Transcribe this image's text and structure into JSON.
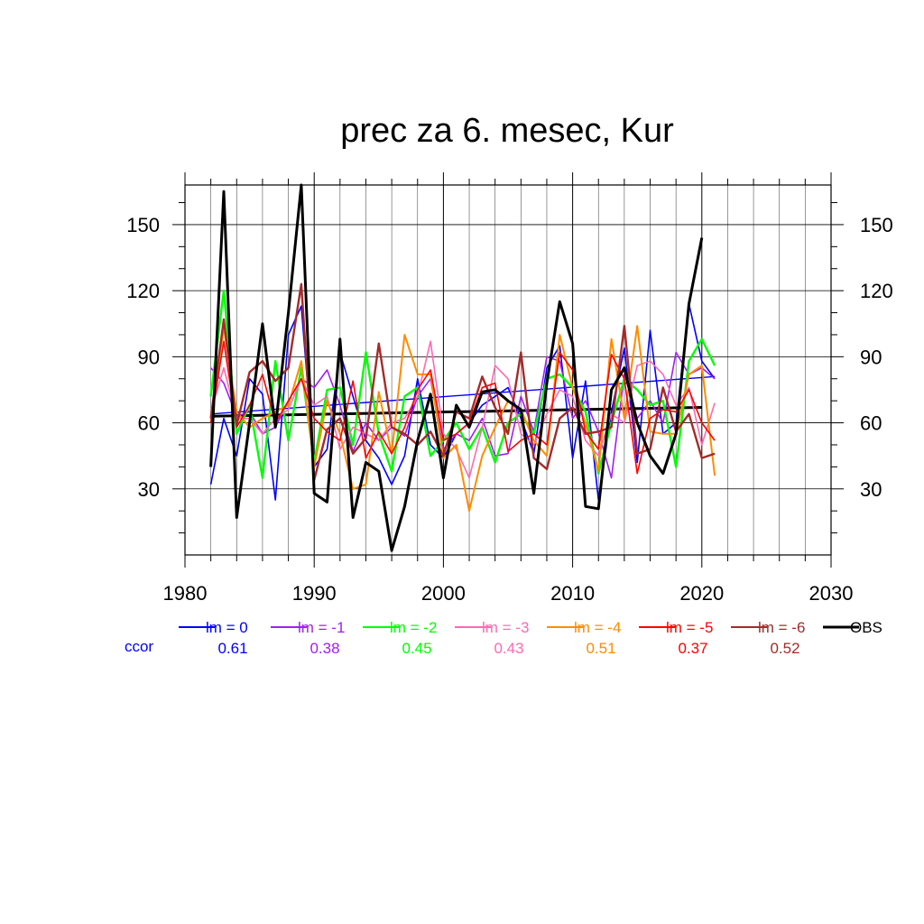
{
  "chart_data": {
    "type": "line",
    "title": "prec za 6. mesec, Kur",
    "xlim": [
      1980,
      2030
    ],
    "ylim": [
      0,
      168
    ],
    "x_ticks": [
      1980,
      1990,
      2000,
      2010,
      2020,
      2030
    ],
    "y_ticks": [
      30,
      60,
      90,
      120,
      150
    ],
    "grid": "on",
    "legend_position": "below",
    "years": [
      1982,
      1983,
      1984,
      1985,
      1986,
      1987,
      1988,
      1989,
      1990,
      1991,
      1992,
      1993,
      1994,
      1995,
      1996,
      1997,
      1998,
      1999,
      2000,
      2001,
      2002,
      2003,
      2004,
      2005,
      2006,
      2007,
      2008,
      2009,
      2010,
      2011,
      2012,
      2013,
      2014,
      2015,
      2016,
      2017,
      2018,
      2019,
      2020,
      2021
    ],
    "ccor_label": "ccor",
    "series": [
      {
        "name": "lm = 0",
        "color": "#0000ff",
        "ccor": "0.61",
        "width": 1.6,
        "values": [
          32,
          62,
          45,
          80,
          73,
          25,
          100,
          113,
          40,
          48,
          92,
          72,
          52,
          44,
          32,
          45,
          80,
          50,
          44,
          55,
          60,
          68,
          72,
          76,
          62,
          46,
          85,
          95,
          44,
          79,
          25,
          65,
          94,
          42,
          102,
          55,
          60,
          114,
          88,
          80
        ],
        "trend": [
          64,
          81
        ]
      },
      {
        "name": "lm = -1",
        "color": "#a020f0",
        "ccor": "0.38",
        "width": 1.6,
        "values": [
          85,
          78,
          63,
          65,
          55,
          58,
          70,
          80,
          76,
          84,
          68,
          47,
          60,
          52,
          58,
          54,
          72,
          80,
          48,
          55,
          52,
          62,
          45,
          46,
          72,
          56,
          90,
          88,
          62,
          70,
          56,
          35,
          82,
          62,
          70,
          60,
          92,
          82,
          85,
          80
        ],
        "trend": null
      },
      {
        "name": "lm = -2",
        "color": "#00ff00",
        "ccor": "0.45",
        "width": 2.4,
        "values": [
          72,
          120,
          55,
          68,
          35,
          88,
          52,
          85,
          42,
          75,
          76,
          50,
          92,
          55,
          38,
          72,
          76,
          45,
          52,
          60,
          48,
          58,
          42,
          60,
          64,
          55,
          80,
          82,
          76,
          65,
          37,
          60,
          80,
          75,
          68,
          70,
          40,
          88,
          98,
          86
        ],
        "trend": null
      },
      {
        "name": "lm = -3",
        "color": "#ff69b4",
        "ccor": "0.43",
        "width": 1.6,
        "values": [
          65,
          85,
          62,
          62,
          55,
          62,
          66,
          80,
          68,
          72,
          48,
          58,
          55,
          52,
          60,
          62,
          72,
          97,
          55,
          48,
          35,
          58,
          86,
          80,
          55,
          50,
          64,
          75,
          72,
          52,
          45,
          64,
          60,
          86,
          88,
          82,
          68,
          76,
          50,
          69
        ],
        "trend": null
      },
      {
        "name": "lm = -4",
        "color": "#ff8c00",
        "ccor": "0.51",
        "width": 2.0,
        "values": [
          60,
          103,
          65,
          58,
          62,
          65,
          68,
          88,
          40,
          70,
          55,
          30,
          32,
          74,
          46,
          100,
          82,
          82,
          44,
          50,
          20,
          45,
          58,
          70,
          66,
          52,
          45,
          100,
          76,
          60,
          38,
          98,
          62,
          104,
          56,
          55,
          55,
          82,
          86,
          36
        ],
        "trend": null
      },
      {
        "name": "lm = -5",
        "color": "#ff0000",
        "ccor": "0.37",
        "width": 1.6,
        "values": [
          60,
          97,
          58,
          68,
          82,
          60,
          70,
          80,
          62,
          56,
          52,
          79,
          44,
          56,
          46,
          58,
          75,
          84,
          52,
          55,
          60,
          76,
          78,
          47,
          52,
          55,
          50,
          92,
          84,
          56,
          48,
          91,
          80,
          37,
          62,
          66,
          65,
          75,
          60,
          52
        ],
        "trend": null
      },
      {
        "name": "lm = -6",
        "color": "#a52a2a",
        "ccor": "0.52",
        "width": 2.4,
        "values": [
          62,
          107,
          59,
          83,
          88,
          79,
          85,
          123,
          34,
          57,
          62,
          46,
          53,
          96,
          58,
          55,
          50,
          56,
          45,
          65,
          62,
          81,
          67,
          55,
          92,
          44,
          39,
          62,
          67,
          55,
          56,
          58,
          104,
          46,
          48,
          76,
          56,
          64,
          44,
          46
        ],
        "trend": null
      },
      {
        "name": "OBS",
        "color": "#000000",
        "ccor": "",
        "width": 3.0,
        "values": [
          40,
          165,
          17,
          60,
          105,
          58,
          110,
          168,
          28,
          24,
          98,
          17,
          42,
          38,
          2,
          22,
          52,
          73,
          35,
          68,
          58,
          74,
          75,
          70,
          66,
          28,
          78,
          115,
          96,
          22,
          21,
          75,
          85,
          60,
          45,
          37,
          55,
          114,
          144,
          null
        ],
        "trend": [
          63,
          67
        ]
      }
    ]
  }
}
